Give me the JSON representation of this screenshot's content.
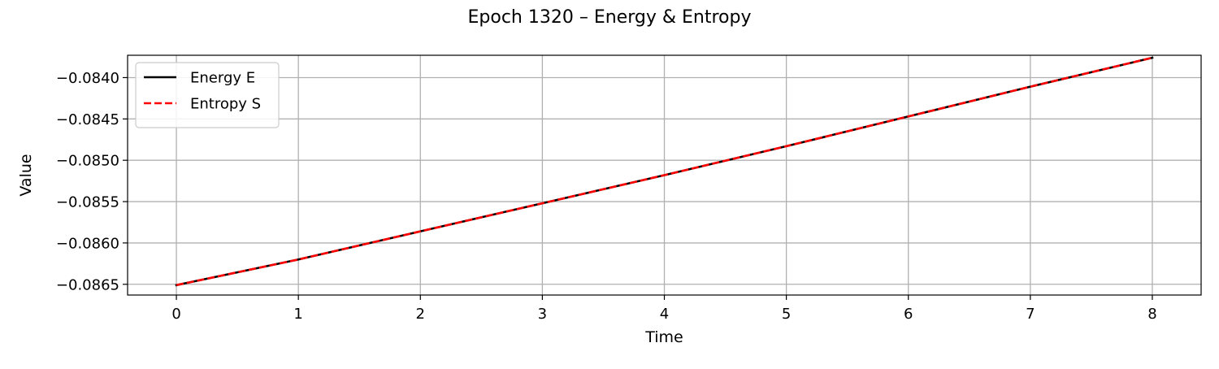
{
  "chart_data": {
    "type": "line",
    "title": "Epoch 1320 – Energy & Entropy",
    "xlabel": "Time",
    "ylabel": "Value",
    "xlim": [
      -0.4,
      8.4
    ],
    "ylim": [
      -0.08663,
      -0.08373
    ],
    "x": [
      0,
      1,
      2,
      3,
      4,
      5,
      6,
      7,
      8
    ],
    "x_ticks": [
      0,
      1,
      2,
      3,
      4,
      5,
      6,
      7,
      8
    ],
    "x_tick_labels": [
      "0",
      "1",
      "2",
      "3",
      "4",
      "5",
      "6",
      "7",
      "8"
    ],
    "y_ticks": [
      -0.084,
      -0.0845,
      -0.085,
      -0.0855,
      -0.086,
      -0.0865
    ],
    "y_tick_labels": [
      "−0.0840",
      "−0.0845",
      "−0.0850",
      "−0.0855",
      "−0.0860",
      "−0.0865"
    ],
    "grid": true,
    "legend_position": "top-left",
    "series": [
      {
        "name": "Energy E",
        "color": "#000000",
        "style": "solid",
        "values": [
          -0.08651,
          -0.0862,
          -0.08586,
          -0.08552,
          -0.08518,
          -0.08483,
          -0.08447,
          -0.08411,
          -0.08376
        ]
      },
      {
        "name": "Entropy S",
        "color": "#ff0000",
        "style": "dashed",
        "values": [
          -0.08651,
          -0.0862,
          -0.08586,
          -0.08552,
          -0.08518,
          -0.08483,
          -0.08447,
          -0.08411,
          -0.08376
        ]
      }
    ]
  }
}
